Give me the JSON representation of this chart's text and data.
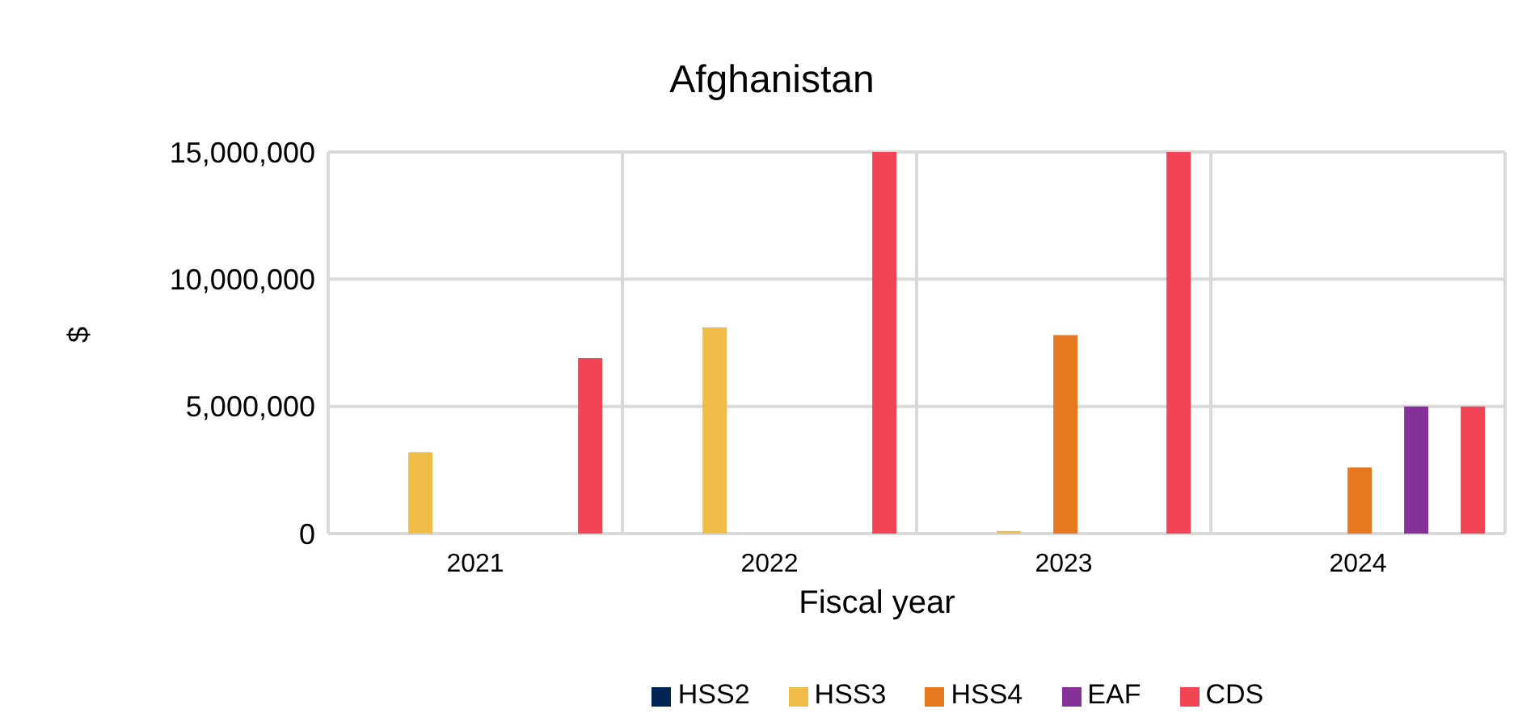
{
  "chart_data": {
    "type": "bar",
    "title": "Afghanistan",
    "xlabel": "Fiscal year",
    "ylabel": "$",
    "categories": [
      "2021",
      "2022",
      "2023",
      "2024"
    ],
    "series": [
      {
        "name": "HSS2",
        "color": "#002554",
        "values": [
          0,
          null,
          null,
          null
        ]
      },
      {
        "name": "HSS3",
        "color": "#f0bc48",
        "values": [
          3200000,
          8100000,
          100000,
          null
        ]
      },
      {
        "name": "HSS4",
        "color": "#e67820",
        "values": [
          null,
          null,
          7800000,
          2600000
        ]
      },
      {
        "name": "EAF",
        "color": "#86319a",
        "values": [
          null,
          null,
          null,
          5000000
        ]
      },
      {
        "name": "CDS",
        "color": "#f14555",
        "values": [
          6900000,
          15000000,
          15000000,
          5000000
        ]
      }
    ],
    "ylim": [
      0,
      15000000
    ],
    "yticks": [
      {
        "value": 0,
        "label": "0"
      },
      {
        "value": 5000000,
        "label": "5,000,000"
      },
      {
        "value": 10000000,
        "label": "10,000,000"
      },
      {
        "value": 15000000,
        "label": "15,000,000"
      }
    ],
    "grid": true,
    "legend": "bottom"
  }
}
